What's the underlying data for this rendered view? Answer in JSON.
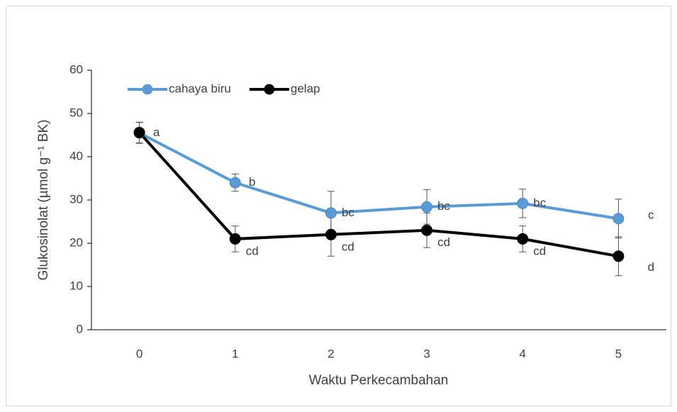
{
  "chart_data": {
    "type": "line",
    "x_label": "Waktu Perkecambahan",
    "y_label": "Glukosinolat (µmol g⁻¹ BK)",
    "categories": [
      "0",
      "1",
      "2",
      "3",
      "4",
      "5"
    ],
    "ylim": [
      0,
      60
    ],
    "yticks": [
      0,
      10,
      20,
      30,
      40,
      50,
      60
    ],
    "legend": "top-left",
    "grid": false,
    "series": [
      {
        "name": "cahaya biru",
        "color": "#5b9bd5",
        "values": [
          45.5,
          34,
          27,
          28.4,
          29.2,
          25.7
        ],
        "errors": [
          2.4,
          2,
          5,
          4,
          3.3,
          4.5
        ],
        "labels": [
          "a",
          "b",
          "bc",
          "bc",
          "bc",
          "c"
        ]
      },
      {
        "name": "gelap",
        "color": "#000000",
        "values": [
          45.6,
          21,
          22,
          23,
          21,
          17
        ],
        "errors": [
          2.4,
          3,
          5,
          4,
          3,
          4.5
        ],
        "labels": [
          null,
          "cd",
          "cd",
          "cd",
          "cd",
          "d"
        ]
      }
    ]
  }
}
